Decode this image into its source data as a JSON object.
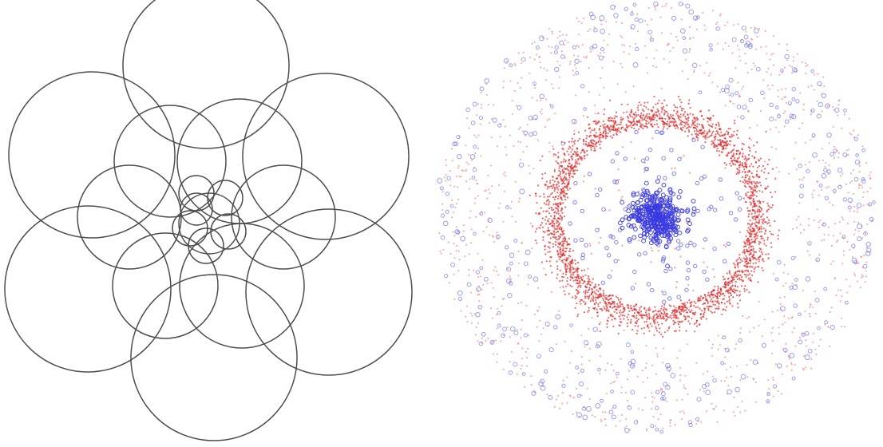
{
  "panels": [
    {
      "name": "circle-packing-diagram",
      "stroke_color": "#4d4d4d",
      "rings": [
        {
          "ring": "outer",
          "count": 6
        },
        {
          "ring": "middle",
          "count": 6
        },
        {
          "ring": "inner",
          "count": 6
        },
        {
          "ring": "center",
          "count": 1
        }
      ]
    },
    {
      "name": "particle-scatter-plot",
      "colors": {
        "core_particles": "#3a3ae0",
        "ring_particles": "#e02a2a",
        "field_particles_red": "#e87070",
        "field_particles_blue": "#6a6ae6"
      },
      "structure": [
        "dense-blue-core",
        "red-annular-ring",
        "sparse-mixed-halo"
      ]
    }
  ]
}
